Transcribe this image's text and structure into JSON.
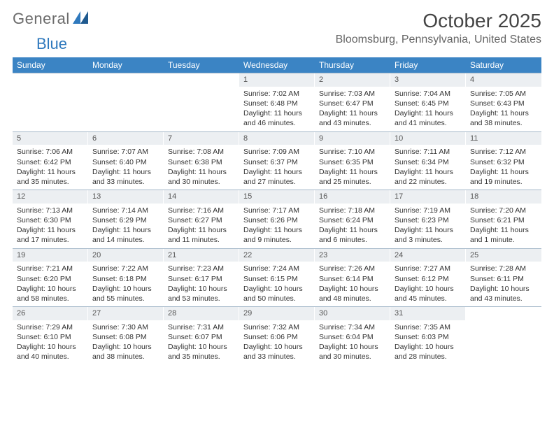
{
  "brand": {
    "part1": "General",
    "part2": "Blue"
  },
  "title": "October 2025",
  "location": "Bloomsburg, Pennsylvania, United States",
  "colors": {
    "header_bg": "#3b84c4",
    "daynum_bg": "#eceff2",
    "rule": "#a5b8c9",
    "logo_gray": "#6b6b6b",
    "logo_blue": "#2f79bd"
  },
  "day_headers": [
    "Sunday",
    "Monday",
    "Tuesday",
    "Wednesday",
    "Thursday",
    "Friday",
    "Saturday"
  ],
  "weeks": [
    [
      {
        "empty": true
      },
      {
        "empty": true
      },
      {
        "empty": true
      },
      {
        "num": "1",
        "sunrise": "Sunrise: 7:02 AM",
        "sunset": "Sunset: 6:48 PM",
        "day1": "Daylight: 11 hours",
        "day2": "and 46 minutes."
      },
      {
        "num": "2",
        "sunrise": "Sunrise: 7:03 AM",
        "sunset": "Sunset: 6:47 PM",
        "day1": "Daylight: 11 hours",
        "day2": "and 43 minutes."
      },
      {
        "num": "3",
        "sunrise": "Sunrise: 7:04 AM",
        "sunset": "Sunset: 6:45 PM",
        "day1": "Daylight: 11 hours",
        "day2": "and 41 minutes."
      },
      {
        "num": "4",
        "sunrise": "Sunrise: 7:05 AM",
        "sunset": "Sunset: 6:43 PM",
        "day1": "Daylight: 11 hours",
        "day2": "and 38 minutes."
      }
    ],
    [
      {
        "num": "5",
        "sunrise": "Sunrise: 7:06 AM",
        "sunset": "Sunset: 6:42 PM",
        "day1": "Daylight: 11 hours",
        "day2": "and 35 minutes."
      },
      {
        "num": "6",
        "sunrise": "Sunrise: 7:07 AM",
        "sunset": "Sunset: 6:40 PM",
        "day1": "Daylight: 11 hours",
        "day2": "and 33 minutes."
      },
      {
        "num": "7",
        "sunrise": "Sunrise: 7:08 AM",
        "sunset": "Sunset: 6:38 PM",
        "day1": "Daylight: 11 hours",
        "day2": "and 30 minutes."
      },
      {
        "num": "8",
        "sunrise": "Sunrise: 7:09 AM",
        "sunset": "Sunset: 6:37 PM",
        "day1": "Daylight: 11 hours",
        "day2": "and 27 minutes."
      },
      {
        "num": "9",
        "sunrise": "Sunrise: 7:10 AM",
        "sunset": "Sunset: 6:35 PM",
        "day1": "Daylight: 11 hours",
        "day2": "and 25 minutes."
      },
      {
        "num": "10",
        "sunrise": "Sunrise: 7:11 AM",
        "sunset": "Sunset: 6:34 PM",
        "day1": "Daylight: 11 hours",
        "day2": "and 22 minutes."
      },
      {
        "num": "11",
        "sunrise": "Sunrise: 7:12 AM",
        "sunset": "Sunset: 6:32 PM",
        "day1": "Daylight: 11 hours",
        "day2": "and 19 minutes."
      }
    ],
    [
      {
        "num": "12",
        "sunrise": "Sunrise: 7:13 AM",
        "sunset": "Sunset: 6:30 PM",
        "day1": "Daylight: 11 hours",
        "day2": "and 17 minutes."
      },
      {
        "num": "13",
        "sunrise": "Sunrise: 7:14 AM",
        "sunset": "Sunset: 6:29 PM",
        "day1": "Daylight: 11 hours",
        "day2": "and 14 minutes."
      },
      {
        "num": "14",
        "sunrise": "Sunrise: 7:16 AM",
        "sunset": "Sunset: 6:27 PM",
        "day1": "Daylight: 11 hours",
        "day2": "and 11 minutes."
      },
      {
        "num": "15",
        "sunrise": "Sunrise: 7:17 AM",
        "sunset": "Sunset: 6:26 PM",
        "day1": "Daylight: 11 hours",
        "day2": "and 9 minutes."
      },
      {
        "num": "16",
        "sunrise": "Sunrise: 7:18 AM",
        "sunset": "Sunset: 6:24 PM",
        "day1": "Daylight: 11 hours",
        "day2": "and 6 minutes."
      },
      {
        "num": "17",
        "sunrise": "Sunrise: 7:19 AM",
        "sunset": "Sunset: 6:23 PM",
        "day1": "Daylight: 11 hours",
        "day2": "and 3 minutes."
      },
      {
        "num": "18",
        "sunrise": "Sunrise: 7:20 AM",
        "sunset": "Sunset: 6:21 PM",
        "day1": "Daylight: 11 hours",
        "day2": "and 1 minute."
      }
    ],
    [
      {
        "num": "19",
        "sunrise": "Sunrise: 7:21 AM",
        "sunset": "Sunset: 6:20 PM",
        "day1": "Daylight: 10 hours",
        "day2": "and 58 minutes."
      },
      {
        "num": "20",
        "sunrise": "Sunrise: 7:22 AM",
        "sunset": "Sunset: 6:18 PM",
        "day1": "Daylight: 10 hours",
        "day2": "and 55 minutes."
      },
      {
        "num": "21",
        "sunrise": "Sunrise: 7:23 AM",
        "sunset": "Sunset: 6:17 PM",
        "day1": "Daylight: 10 hours",
        "day2": "and 53 minutes."
      },
      {
        "num": "22",
        "sunrise": "Sunrise: 7:24 AM",
        "sunset": "Sunset: 6:15 PM",
        "day1": "Daylight: 10 hours",
        "day2": "and 50 minutes."
      },
      {
        "num": "23",
        "sunrise": "Sunrise: 7:26 AM",
        "sunset": "Sunset: 6:14 PM",
        "day1": "Daylight: 10 hours",
        "day2": "and 48 minutes."
      },
      {
        "num": "24",
        "sunrise": "Sunrise: 7:27 AM",
        "sunset": "Sunset: 6:12 PM",
        "day1": "Daylight: 10 hours",
        "day2": "and 45 minutes."
      },
      {
        "num": "25",
        "sunrise": "Sunrise: 7:28 AM",
        "sunset": "Sunset: 6:11 PM",
        "day1": "Daylight: 10 hours",
        "day2": "and 43 minutes."
      }
    ],
    [
      {
        "num": "26",
        "sunrise": "Sunrise: 7:29 AM",
        "sunset": "Sunset: 6:10 PM",
        "day1": "Daylight: 10 hours",
        "day2": "and 40 minutes."
      },
      {
        "num": "27",
        "sunrise": "Sunrise: 7:30 AM",
        "sunset": "Sunset: 6:08 PM",
        "day1": "Daylight: 10 hours",
        "day2": "and 38 minutes."
      },
      {
        "num": "28",
        "sunrise": "Sunrise: 7:31 AM",
        "sunset": "Sunset: 6:07 PM",
        "day1": "Daylight: 10 hours",
        "day2": "and 35 minutes."
      },
      {
        "num": "29",
        "sunrise": "Sunrise: 7:32 AM",
        "sunset": "Sunset: 6:06 PM",
        "day1": "Daylight: 10 hours",
        "day2": "and 33 minutes."
      },
      {
        "num": "30",
        "sunrise": "Sunrise: 7:34 AM",
        "sunset": "Sunset: 6:04 PM",
        "day1": "Daylight: 10 hours",
        "day2": "and 30 minutes."
      },
      {
        "num": "31",
        "sunrise": "Sunrise: 7:35 AM",
        "sunset": "Sunset: 6:03 PM",
        "day1": "Daylight: 10 hours",
        "day2": "and 28 minutes."
      },
      {
        "empty": true
      }
    ]
  ]
}
